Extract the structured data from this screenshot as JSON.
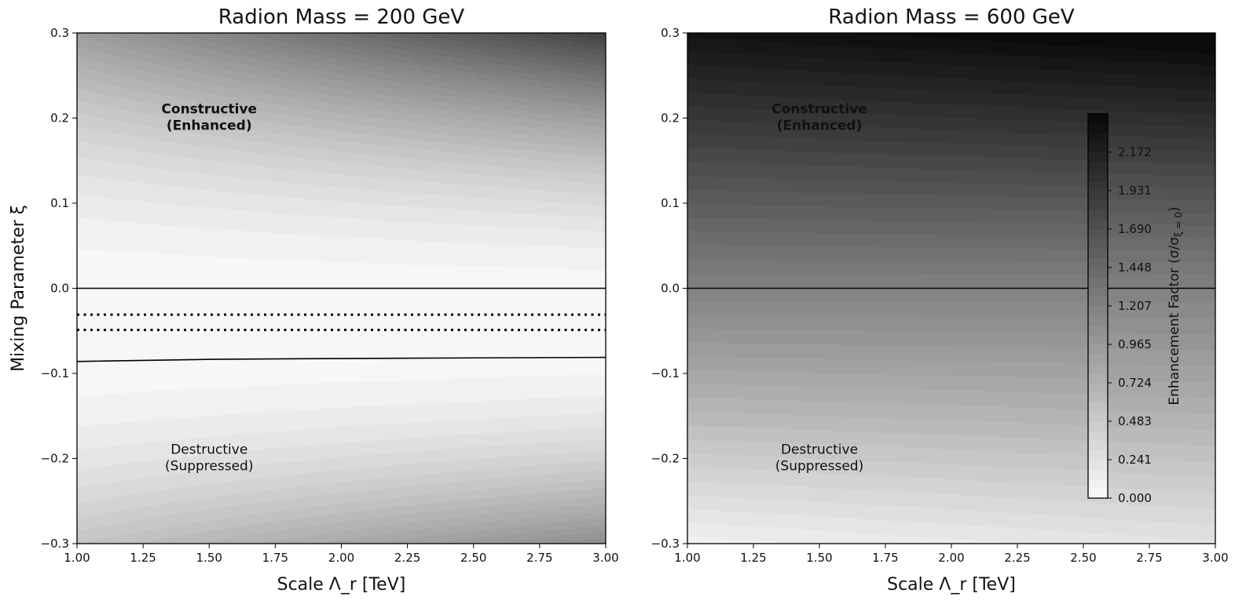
{
  "chart_data": [
    {
      "type": "heatmap",
      "title": "Radion Mass = 200 GeV",
      "xlabel": "Scale Λ_r [TeV]",
      "ylabel": "Mixing Parameter ξ",
      "xlim": [
        1.0,
        3.0
      ],
      "ylim": [
        -0.3,
        0.3
      ],
      "xticks": [
        "1.00",
        "1.25",
        "1.50",
        "1.75",
        "2.00",
        "2.25",
        "2.50",
        "2.75",
        "3.00"
      ],
      "yticks": [
        "−0.3",
        "−0.2",
        "−0.1",
        "0.0",
        "0.1",
        "0.2",
        "0.3"
      ],
      "model": {
        "kind": "quadratic",
        "xi0": -0.04,
        "scale": 8.0,
        "lambda_slope": 0.5
      },
      "lines": [
        {
          "style": "solid",
          "points": [
            [
              1.0,
              0.0
            ],
            [
              3.0,
              0.0
            ]
          ]
        },
        {
          "style": "dotted",
          "points": [
            [
              1.0,
              -0.031
            ],
            [
              3.0,
              -0.031
            ]
          ]
        },
        {
          "style": "dotted",
          "points": [
            [
              1.0,
              -0.049
            ],
            [
              3.0,
              -0.049
            ]
          ]
        },
        {
          "style": "solid",
          "points": [
            [
              1.0,
              -0.086
            ],
            [
              1.5,
              -0.0835
            ],
            [
              2.0,
              -0.0825
            ],
            [
              2.5,
              -0.0818
            ],
            [
              3.0,
              -0.0812
            ]
          ]
        }
      ],
      "annotations": [
        {
          "lines": [
            "Constructive",
            "(Enhanced)"
          ],
          "x": 1.5,
          "y": 0.2,
          "bold": true
        },
        {
          "lines": [
            "Destructive",
            "(Suppressed)"
          ],
          "x": 1.5,
          "y": -0.2,
          "bold": false
        }
      ]
    },
    {
      "type": "heatmap",
      "title": "Radion Mass = 600 GeV",
      "xlabel": "Scale Λ_r [TeV]",
      "ylabel": "",
      "xlim": [
        1.0,
        3.0
      ],
      "ylim": [
        -0.3,
        0.3
      ],
      "xticks": [
        "1.00",
        "1.25",
        "1.50",
        "1.75",
        "2.00",
        "2.25",
        "2.50",
        "2.75",
        "3.00"
      ],
      "yticks": [
        "−0.3",
        "−0.2",
        "−0.1",
        "0.0",
        "0.1",
        "0.2",
        "0.3"
      ],
      "model": {
        "kind": "linear",
        "base": 1.2,
        "slope": 3.7,
        "lambda_slope": 0.08
      },
      "lines": [
        {
          "style": "solid",
          "points": [
            [
              1.0,
              0.0
            ],
            [
              3.0,
              0.0
            ]
          ]
        }
      ],
      "annotations": [
        {
          "lines": [
            "Constructive",
            "(Enhanced)"
          ],
          "x": 1.5,
          "y": 0.2,
          "bold": true
        },
        {
          "lines": [
            "Destructive",
            "(Suppressed)"
          ],
          "x": 1.5,
          "y": -0.2,
          "bold": false
        }
      ],
      "colorbar": {
        "label": "Enhancement Factor (σ/σ",
        "label_sub": "ξ = 0",
        "label_end": ")",
        "range": [
          0.0,
          2.413
        ],
        "levels": 40,
        "ticks": [
          "0.000",
          "0.241",
          "0.483",
          "0.724",
          "0.965",
          "1.207",
          "1.448",
          "1.690",
          "1.931",
          "2.172"
        ],
        "tick_values": [
          0.0,
          0.241,
          0.483,
          0.724,
          0.965,
          1.207,
          1.448,
          1.69,
          1.931,
          2.172
        ]
      }
    }
  ]
}
